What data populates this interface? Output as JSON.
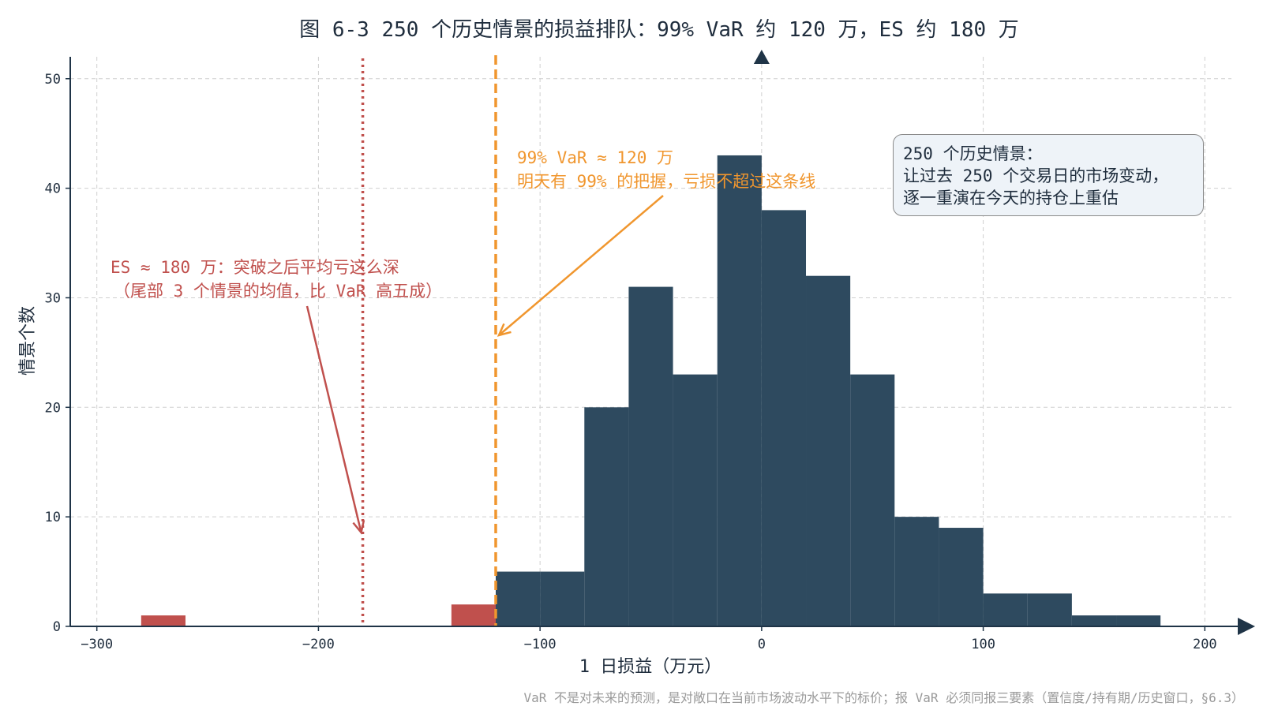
{
  "chart_data": {
    "type": "bar",
    "title": "图 6-3 250 个历史情景的损益排队：99% VaR 约 120 万，ES 约 180 万",
    "xlabel": "1 日损益（万元）",
    "ylabel": "情景个数",
    "xlim": [
      -312,
      212
    ],
    "ylim": [
      0,
      52
    ],
    "x_ticks": [
      -300,
      -200,
      -100,
      0,
      100,
      200
    ],
    "x_tick_labels": [
      "−300",
      "−200",
      "−100",
      "0",
      "100",
      "200"
    ],
    "y_ticks": [
      0,
      10,
      20,
      30,
      40,
      50
    ],
    "y_tick_labels": [
      "0",
      "10",
      "20",
      "30",
      "40",
      "50"
    ],
    "grid": true,
    "bin_width": 20,
    "bins": [
      {
        "x0": -280,
        "x1": -260,
        "count": 1,
        "tail": true
      },
      {
        "x0": -140,
        "x1": -120,
        "count": 2,
        "tail": true
      },
      {
        "x0": -120,
        "x1": -100,
        "count": 5,
        "tail": false
      },
      {
        "x0": -100,
        "x1": -80,
        "count": 5,
        "tail": false
      },
      {
        "x0": -80,
        "x1": -60,
        "count": 20,
        "tail": false
      },
      {
        "x0": -60,
        "x1": -40,
        "count": 31,
        "tail": false
      },
      {
        "x0": -40,
        "x1": -20,
        "count": 23,
        "tail": false
      },
      {
        "x0": -20,
        "x1": 0,
        "count": 43,
        "tail": false
      },
      {
        "x0": 0,
        "x1": 20,
        "count": 38,
        "tail": false
      },
      {
        "x0": 20,
        "x1": 40,
        "count": 32,
        "tail": false
      },
      {
        "x0": 40,
        "x1": 60,
        "count": 23,
        "tail": false
      },
      {
        "x0": 60,
        "x1": 80,
        "count": 10,
        "tail": false
      },
      {
        "x0": 80,
        "x1": 100,
        "count": 9,
        "tail": false
      },
      {
        "x0": 100,
        "x1": 120,
        "count": 3,
        "tail": false
      },
      {
        "x0": 120,
        "x1": 140,
        "count": 3,
        "tail": false
      },
      {
        "x0": 140,
        "x1": 160,
        "count": 1,
        "tail": false
      },
      {
        "x0": 160,
        "x1": 180,
        "count": 1,
        "tail": false
      }
    ],
    "var_line": {
      "x": -120,
      "label_lines": [
        "99% VaR ≈ 120 万",
        "明天有 99% 的把握，亏损不超过这条线"
      ]
    },
    "es_line": {
      "x": -180,
      "label_lines": [
        "ES ≈ 180 万：突破之后平均亏这么深",
        "（尾部 3 个情景的均值，比 VaR 高五成）"
      ]
    },
    "note_lines": [
      "250 个历史情景：",
      "让过去 250 个交易日的市场变动，",
      "逐一重演在今天的持仓上重估"
    ],
    "footnote": "VaR 不是对未来的预测，是对敞口在当前市场波动水平下的标价；报 VaR 必须同报三要素（置信度/持有期/历史窗口，§6.3）",
    "colors": {
      "body_bars": "#2e4a5f",
      "tail_bars": "#c0504d",
      "var_line": "#f0962e",
      "es_line": "#c0504d",
      "axis": "#1f3447",
      "grid": "#cfcfcf",
      "text": "#1f2d3d",
      "footnote": "#9a9a9a"
    }
  }
}
